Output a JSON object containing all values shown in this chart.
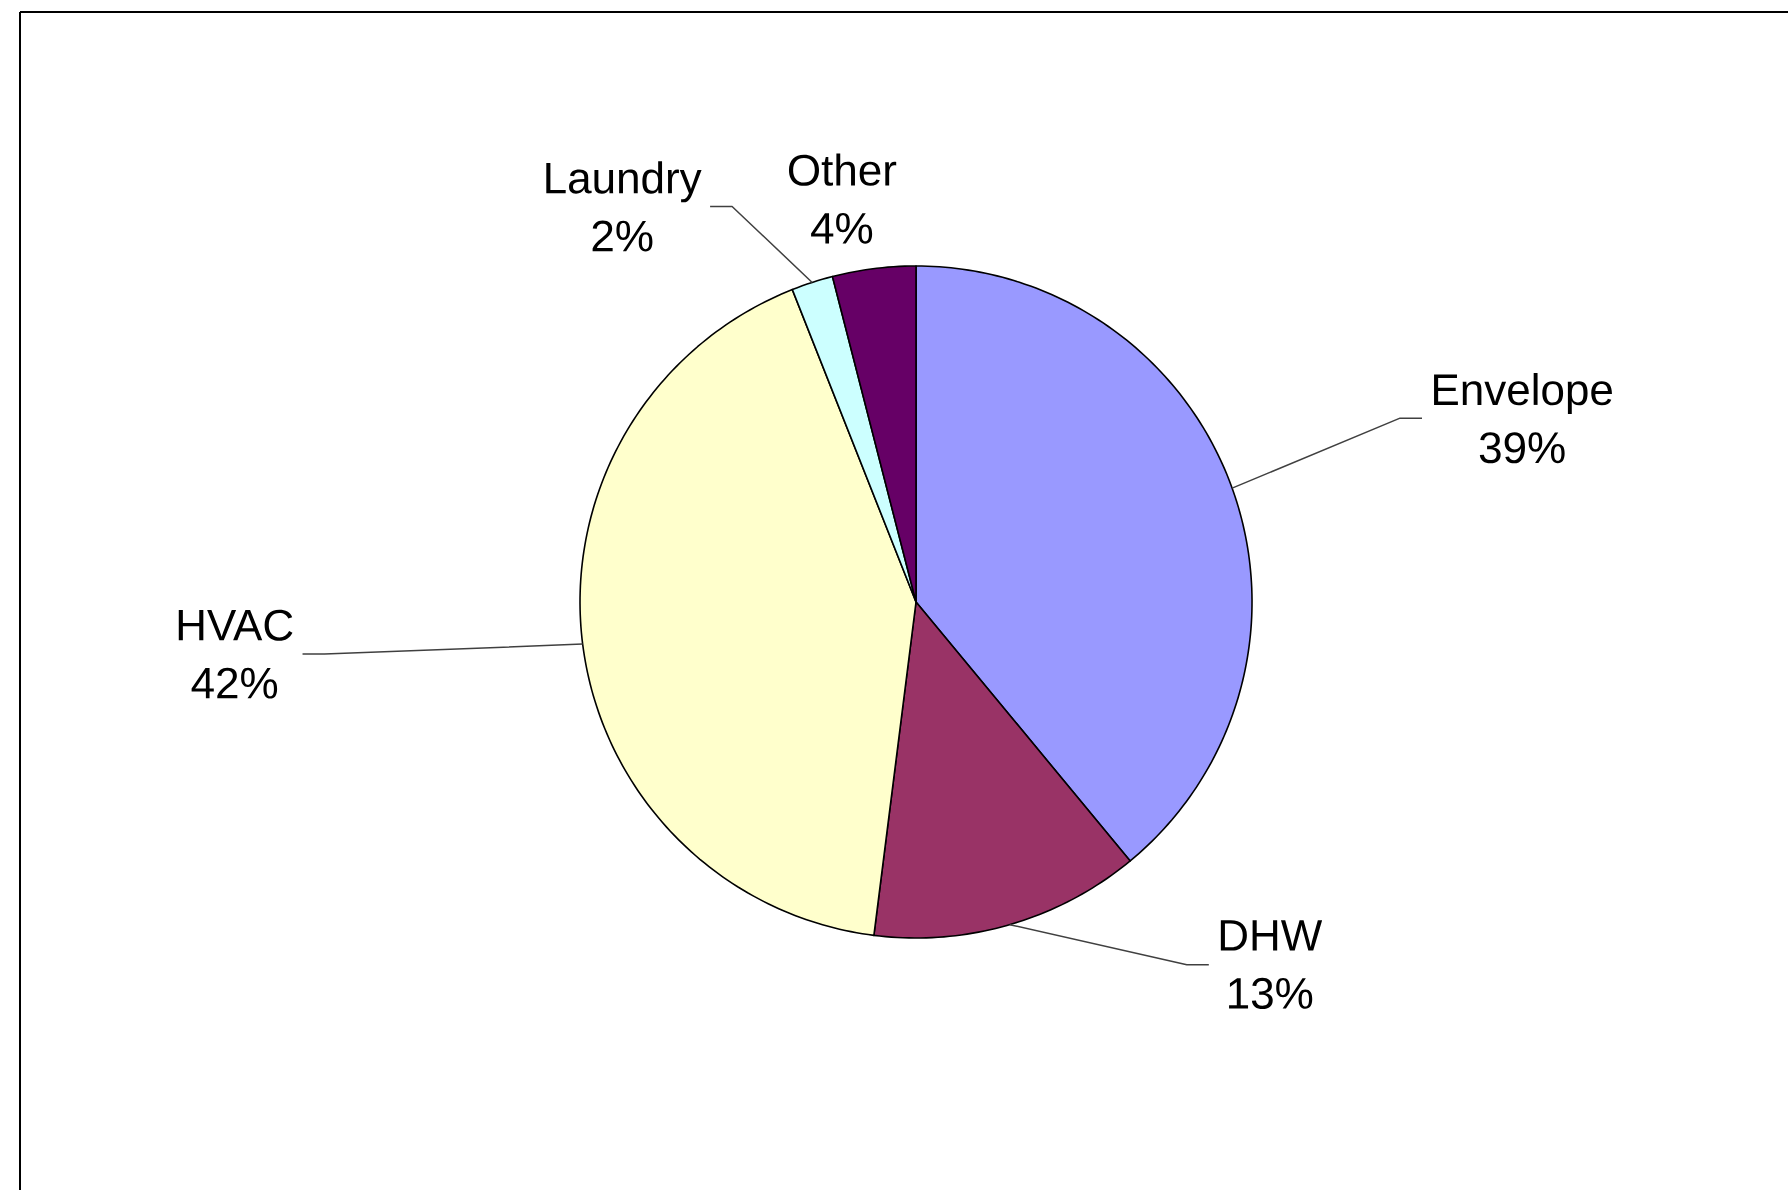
{
  "chart_data": {
    "type": "pie",
    "categories": [
      "Envelope",
      "DHW",
      "HVAC",
      "Laundry",
      "Other"
    ],
    "values": [
      39,
      13,
      42,
      2,
      4
    ],
    "colors": [
      "#9999ff",
      "#993366",
      "#ffffcc",
      "#ccffff",
      "#660066"
    ],
    "value_labels": [
      "39%",
      "13%",
      "42%",
      "2%",
      "4%"
    ]
  }
}
